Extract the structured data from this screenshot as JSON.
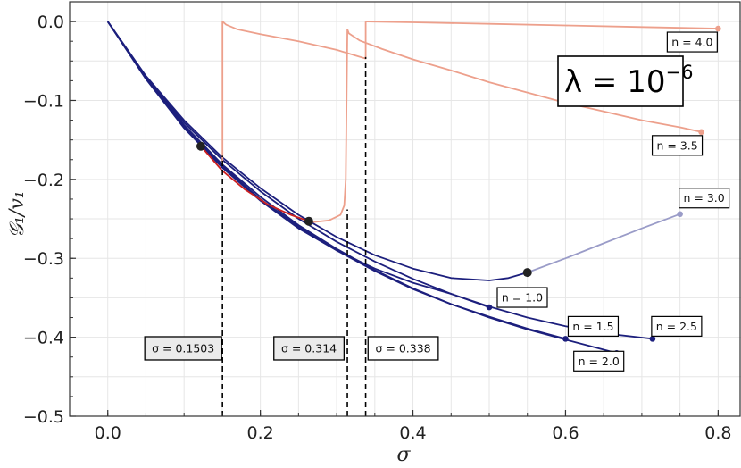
{
  "chart_data": {
    "type": "line",
    "xlabel": "σ",
    "ylabel": "𝒢₁/v₁",
    "xlim": [
      -0.05,
      0.83
    ],
    "ylim": [
      -0.5,
      0.025
    ],
    "xticks": [
      0.0,
      0.2,
      0.4,
      0.6,
      0.8
    ],
    "xtick_labels": [
      "0.0",
      "0.2",
      "0.4",
      "0.6",
      "0.8"
    ],
    "yticks": [
      0.0,
      -0.1,
      -0.2,
      -0.3,
      -0.4,
      -0.5
    ],
    "ytick_labels": [
      "0.0",
      "−0.1",
      "−0.2",
      "−0.3",
      "−0.4",
      "−0.5"
    ],
    "grid": true,
    "annotation": {
      "base": "λ = 10",
      "exponent": "−6"
    },
    "colors": {
      "dark_blue": "#1c1f7d",
      "light_blue": "#9a9cc8",
      "salmon": "#eda08c",
      "red": "#cc1f1f",
      "marker_black": "#222222"
    },
    "series": [
      {
        "label": "n = 1.0",
        "color": "#1c1f7d",
        "points": [
          [
            0,
            0
          ],
          [
            0.05,
            -0.073
          ],
          [
            0.1,
            -0.135
          ],
          [
            0.15,
            -0.185
          ],
          [
            0.2,
            -0.227
          ],
          [
            0.25,
            -0.262
          ],
          [
            0.3,
            -0.29
          ],
          [
            0.35,
            -0.313
          ],
          [
            0.4,
            -0.331
          ],
          [
            0.45,
            -0.345
          ],
          [
            0.5,
            -0.362
          ]
        ],
        "end_point": [
          0.5,
          -0.362
        ]
      },
      {
        "label": "n = 1.5",
        "color": "#1c1f7d",
        "points": [
          [
            0,
            0
          ],
          [
            0.05,
            -0.072
          ],
          [
            0.1,
            -0.133
          ],
          [
            0.15,
            -0.183
          ],
          [
            0.2,
            -0.225
          ],
          [
            0.25,
            -0.26
          ],
          [
            0.3,
            -0.29
          ],
          [
            0.35,
            -0.316
          ],
          [
            0.4,
            -0.339
          ],
          [
            0.45,
            -0.358
          ],
          [
            0.5,
            -0.374
          ],
          [
            0.55,
            -0.389
          ],
          [
            0.6,
            -0.402
          ]
        ],
        "end_point": [
          0.6,
          -0.402
        ]
      },
      {
        "label": "n = 2.0",
        "color": "#1c1f7d",
        "points": [
          [
            0,
            0
          ],
          [
            0.05,
            -0.071
          ],
          [
            0.1,
            -0.131
          ],
          [
            0.15,
            -0.181
          ],
          [
            0.2,
            -0.222
          ],
          [
            0.25,
            -0.258
          ],
          [
            0.3,
            -0.288
          ],
          [
            0.35,
            -0.315
          ],
          [
            0.4,
            -0.338
          ],
          [
            0.45,
            -0.358
          ],
          [
            0.5,
            -0.375
          ],
          [
            0.55,
            -0.39
          ],
          [
            0.6,
            -0.403
          ],
          [
            0.667,
            -0.42
          ]
        ],
        "end_point": [
          0.667,
          -0.42
        ]
      },
      {
        "label": "n = 2.5",
        "color": "#1c1f7d",
        "points": [
          [
            0,
            0
          ],
          [
            0.05,
            -0.07
          ],
          [
            0.1,
            -0.128
          ],
          [
            0.15,
            -0.175
          ],
          [
            0.2,
            -0.215
          ],
          [
            0.25,
            -0.25
          ],
          [
            0.3,
            -0.279
          ],
          [
            0.35,
            -0.304
          ],
          [
            0.4,
            -0.326
          ],
          [
            0.45,
            -0.345
          ],
          [
            0.5,
            -0.361
          ],
          [
            0.55,
            -0.375
          ],
          [
            0.6,
            -0.386
          ],
          [
            0.65,
            -0.395
          ],
          [
            0.714,
            -0.402
          ]
        ],
        "end_point": [
          0.714,
          -0.402
        ]
      },
      {
        "label": "n = 3.0",
        "color": "#1c1f7d",
        "points": [
          [
            0,
            0
          ],
          [
            0.05,
            -0.069
          ],
          [
            0.1,
            -0.125
          ],
          [
            0.15,
            -0.172
          ],
          [
            0.2,
            -0.211
          ],
          [
            0.25,
            -0.245
          ],
          [
            0.3,
            -0.273
          ],
          [
            0.35,
            -0.296
          ],
          [
            0.4,
            -0.313
          ],
          [
            0.45,
            -0.325
          ],
          [
            0.5,
            -0.328
          ],
          [
            0.525,
            -0.325
          ],
          [
            0.55,
            -0.318
          ]
        ],
        "stable_part_color": "#9a9cc8",
        "extension": [
          [
            0.55,
            -0.318
          ],
          [
            0.6,
            -0.3
          ],
          [
            0.65,
            -0.281
          ],
          [
            0.7,
            -0.262
          ],
          [
            0.75,
            -0.244
          ]
        ],
        "marker": [
          0.55,
          -0.318
        ],
        "end_point": [
          0.75,
          -0.244
        ]
      },
      {
        "label": "n = 3.5",
        "color": "#eda08c",
        "points": [
          [
            0.314,
            -0.01
          ],
          [
            0.316,
            -0.015
          ],
          [
            0.33,
            -0.024
          ],
          [
            0.36,
            -0.035
          ],
          [
            0.4,
            -0.048
          ],
          [
            0.45,
            -0.062
          ],
          [
            0.5,
            -0.077
          ],
          [
            0.55,
            -0.09
          ],
          [
            0.6,
            -0.103
          ],
          [
            0.65,
            -0.114
          ],
          [
            0.7,
            -0.125
          ],
          [
            0.75,
            -0.134
          ],
          [
            0.778,
            -0.14
          ]
        ],
        "end_point": [
          0.778,
          -0.14
        ]
      },
      {
        "label": "n = 4.0",
        "color": "#eda08c",
        "points": [
          [
            0.338,
            0
          ],
          [
            0.4,
            -0.001
          ],
          [
            0.5,
            -0.003
          ],
          [
            0.6,
            -0.005
          ],
          [
            0.7,
            -0.007
          ],
          [
            0.8,
            -0.009
          ]
        ],
        "end_point": [
          0.8,
          -0.009
        ]
      },
      {
        "label": "",
        "color": "#eda08c",
        "points": [
          [
            0.1503,
            -0.178
          ],
          [
            0.1503,
            0
          ],
          [
            0.155,
            -0.004
          ],
          [
            0.17,
            -0.01
          ],
          [
            0.2,
            -0.016
          ],
          [
            0.25,
            -0.025
          ],
          [
            0.3,
            -0.036
          ],
          [
            0.338,
            -0.047
          ],
          [
            0.338,
            0
          ]
        ]
      },
      {
        "label": "",
        "color": "#eda08c",
        "points": [
          [
            0.2635,
            -0.253
          ],
          [
            0.27,
            -0.254
          ],
          [
            0.29,
            -0.252
          ],
          [
            0.305,
            -0.245
          ],
          [
            0.31,
            -0.233
          ],
          [
            0.312,
            -0.2
          ],
          [
            0.313,
            -0.1
          ],
          [
            0.314,
            -0.01
          ]
        ]
      },
      {
        "label": "",
        "color": "#cc1f1f",
        "points": [
          [
            0.122,
            -0.158
          ],
          [
            0.15,
            -0.189
          ],
          [
            0.18,
            -0.213
          ],
          [
            0.21,
            -0.232
          ],
          [
            0.24,
            -0.245
          ],
          [
            0.2635,
            -0.253
          ]
        ]
      }
    ],
    "markers": [
      [
        0.122,
        -0.158
      ],
      [
        0.2635,
        -0.253
      ],
      [
        0.55,
        -0.318
      ]
    ],
    "vlines": [
      {
        "x": 0.1503,
        "y_from": -0.5,
        "y_to": -0.17,
        "label": "σ = 0.1503",
        "shaded": true
      },
      {
        "x": 0.314,
        "y_from": -0.5,
        "y_to": -0.238,
        "label": "σ = 0.314",
        "shaded": true
      },
      {
        "x": 0.338,
        "y_from": -0.5,
        "y_to": -0.045,
        "label": "σ = 0.338",
        "shaded": false
      }
    ],
    "curve_labels": [
      {
        "text": "n = 1.0",
        "at": [
          0.5,
          -0.362
        ]
      },
      {
        "text": "n = 1.5",
        "at": [
          0.6,
          -0.402
        ]
      },
      {
        "text": "n = 2.0",
        "at": [
          0.667,
          -0.42
        ]
      },
      {
        "text": "n = 2.5",
        "at": [
          0.714,
          -0.402
        ]
      },
      {
        "text": "n = 3.0",
        "at": [
          0.75,
          -0.244
        ]
      },
      {
        "text": "n = 3.5",
        "at": [
          0.778,
          -0.14
        ]
      },
      {
        "text": "n = 4.0",
        "at": [
          0.8,
          -0.009
        ]
      }
    ]
  }
}
